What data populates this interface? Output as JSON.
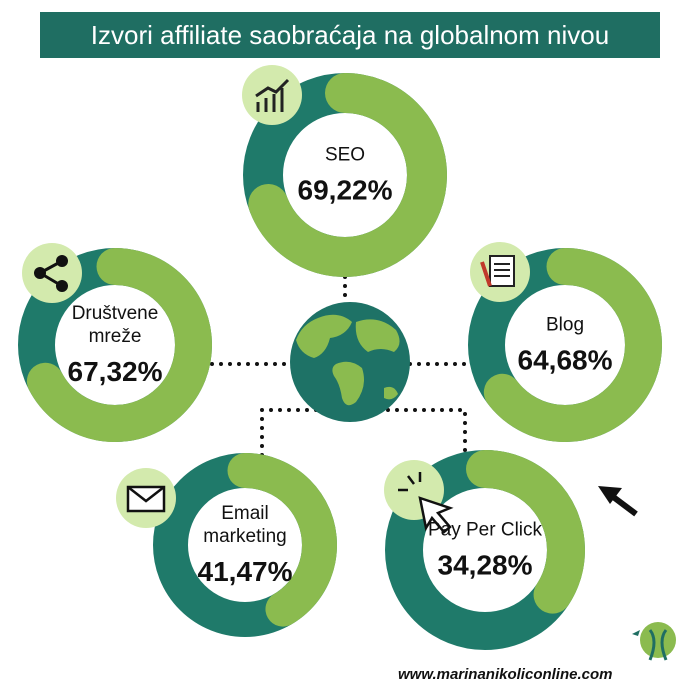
{
  "header": {
    "title": "Izvori affiliate saobraćaja na globalnom nivou"
  },
  "footer": {
    "url": "www.marinanikoliconline.com"
  },
  "chart_data": [
    {
      "type": "donut",
      "title": "SEO",
      "values": [
        69.22
      ],
      "value_labels": [
        "69,22%"
      ],
      "color": "#8bbb4f",
      "track_color": "#1f7a6a"
    },
    {
      "type": "donut",
      "title": "Društvene mreže",
      "values": [
        67.32
      ],
      "value_labels": [
        "67,32%"
      ],
      "color": "#8bbb4f",
      "track_color": "#1f7a6a"
    },
    {
      "type": "donut",
      "title": "Blog",
      "values": [
        64.68
      ],
      "value_labels": [
        "64,68%"
      ],
      "color": "#8bbb4f",
      "track_color": "#1f7a6a"
    },
    {
      "type": "donut",
      "title": "Email marketing",
      "values": [
        41.47
      ],
      "value_labels": [
        "41,47%"
      ],
      "color": "#8bbb4f",
      "track_color": "#1f7a6a"
    },
    {
      "type": "donut",
      "title": "Pay Per Click",
      "values": [
        34.28
      ],
      "value_labels": [
        "34,28%"
      ],
      "color": "#8bbb4f",
      "track_color": "#1f7a6a"
    }
  ]
}
